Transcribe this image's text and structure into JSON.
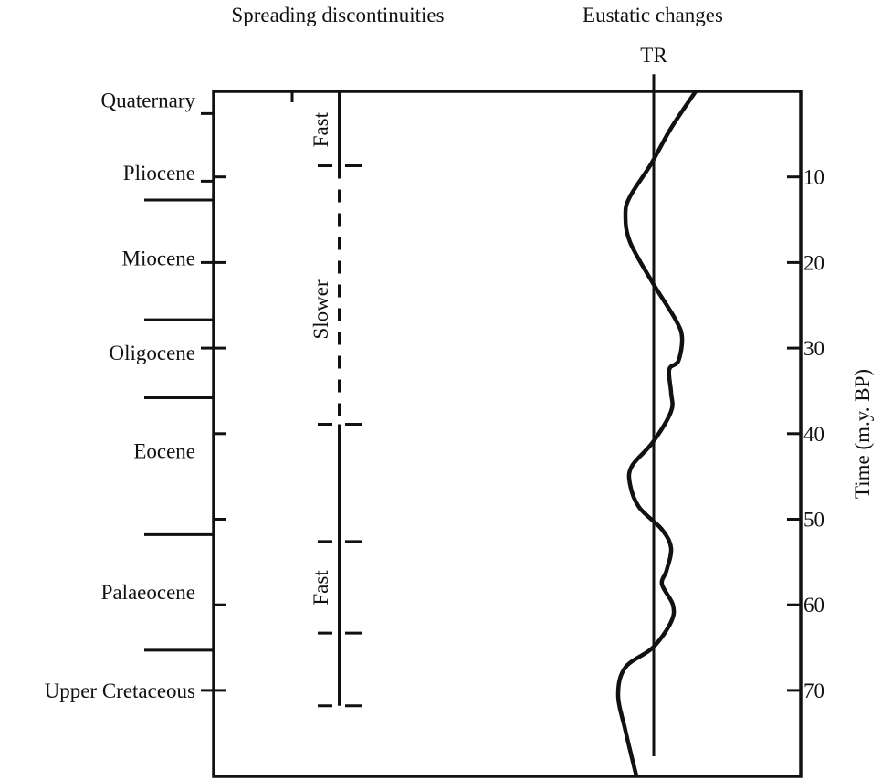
{
  "headers": {
    "spreading": "Spreading discontinuities",
    "eustatic": "Eustatic changes",
    "tr": "TR"
  },
  "epochs": [
    {
      "name": "Quaternary",
      "label_age": 1
    },
    {
      "name": "Pliocene",
      "label_age": 9.5
    },
    {
      "name": "Miocene",
      "label_age": 19.5
    },
    {
      "name": "Oligocene",
      "label_age": 30.5
    },
    {
      "name": "Eocene",
      "label_age": 42
    },
    {
      "name": "Palaeocene",
      "label_age": 58.5
    },
    {
      "name": "Upper Cretaceous",
      "label_age": 70
    }
  ],
  "epoch_label_tick_ages": [
    2.6,
    10.5,
    20,
    30,
    70
  ],
  "epoch_boundaries": [
    12.7,
    26.7,
    35.8,
    51.8,
    65.3
  ],
  "spreading": {
    "labels": [
      {
        "text": "Fast",
        "age": 4.5
      },
      {
        "text": "Slower",
        "age": 25.5
      },
      {
        "text": "Fast",
        "age": 58
      }
    ],
    "segments": [
      {
        "from": 0,
        "to": 8.7,
        "style": "solid"
      },
      {
        "from": 8.7,
        "to": 38.9,
        "style": "dashed"
      },
      {
        "from": 38.9,
        "to": 71.8,
        "style": "solid"
      }
    ],
    "breaks": [
      8.7,
      38.9,
      52.6,
      63.3,
      71.8
    ]
  },
  "chart_data": {
    "type": "line",
    "title": "",
    "ylabel": "Time (m.y. BP)",
    "ylim": [
      0,
      80
    ],
    "yticks": [
      10,
      20,
      30,
      40,
      50,
      60,
      70
    ],
    "tr_line": {
      "label": "TR",
      "level": 0,
      "from_age": -2,
      "to_age": 77.7
    },
    "series": [
      {
        "name": "Eustatic changes (relative sea level, + = right of TR)",
        "age": [
          0,
          4.3,
          8.5,
          12.3,
          14.4,
          17.6,
          22.4,
          26.7,
          28.8,
          31.5,
          32.5,
          35.2,
          37.4,
          41,
          43.8,
          45.9,
          48.6,
          51.2,
          53.4,
          56,
          57.6,
          60,
          62,
          65,
          67.3,
          70.5,
          74.7,
          80
        ],
        "level": [
          4.6,
          1.9,
          -0.3,
          -2.6,
          -3.1,
          -2.6,
          -0.1,
          2.4,
          3.1,
          2.7,
          1.7,
          1.9,
          1.9,
          -0.1,
          -2.4,
          -2.6,
          -1.6,
          0.9,
          1.9,
          1.4,
          0.9,
          2.1,
          1.9,
          -0.1,
          -3.1,
          -3.9,
          -3.1,
          -1.9
        ]
      }
    ]
  }
}
